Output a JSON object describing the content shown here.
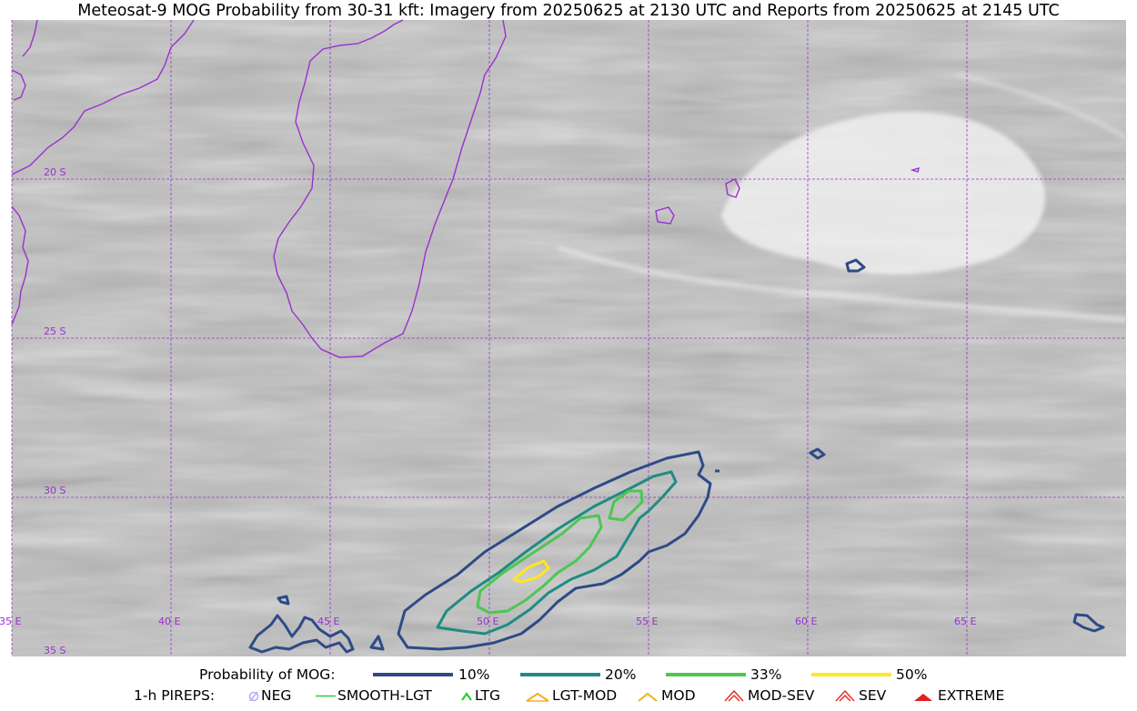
{
  "title": "Meteosat-9 MOG Probability from 30-31 kft: Imagery from 20250625 at 2130 UTC and Reports from 20250625 at 2145 UTC",
  "map": {
    "lon_labels": [
      "35 E",
      "40 E",
      "45 E",
      "50 E",
      "55 E",
      "60 E",
      "65 E"
    ],
    "lat_labels": [
      "20 S",
      "25 S",
      "30 S",
      "35 S"
    ],
    "gridline_color": "#9b30d0",
    "coastline_color": "#9b30d0"
  },
  "legend_probability": {
    "heading": "Probability of MOG:",
    "items": [
      {
        "label": "10%",
        "color": "#2e4a87"
      },
      {
        "label": "20%",
        "color": "#1f8c82"
      },
      {
        "label": "33%",
        "color": "#4cc752"
      },
      {
        "label": "50%",
        "color": "#fde725"
      }
    ]
  },
  "legend_pireps": {
    "heading": "1-h PIREPS:",
    "items": [
      {
        "label": "NEG",
        "icon": "neg-icon",
        "color": "#b0b0f0"
      },
      {
        "label": "SMOOTH-LGT",
        "icon": "smooth-lgt-icon",
        "color": "#3ec93e"
      },
      {
        "label": "LTG",
        "icon": "ltg-icon",
        "color": "#22cc22"
      },
      {
        "label": "LGT-MOD",
        "icon": "lgt-mod-icon",
        "color": "#f0b020"
      },
      {
        "label": "MOD",
        "icon": "mod-icon",
        "color": "#f0b020"
      },
      {
        "label": "MOD-SEV",
        "icon": "mod-sev-icon",
        "color": "#e83030"
      },
      {
        "label": "SEV",
        "icon": "sev-icon",
        "color": "#e83030"
      },
      {
        "label": "EXTREME",
        "icon": "extreme-icon",
        "color": "#e02020"
      }
    ]
  }
}
